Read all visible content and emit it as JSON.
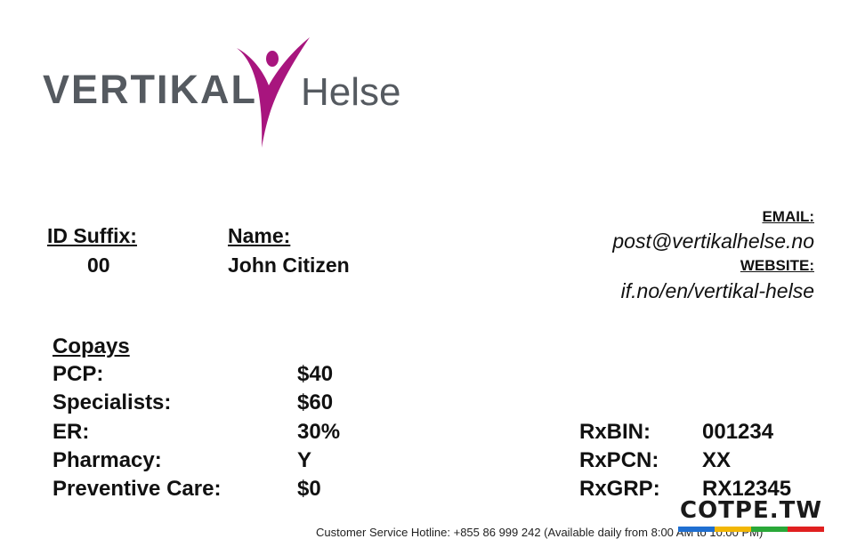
{
  "logo": {
    "word1": "VERTIKAL",
    "word2": "Helse",
    "mark_color": "#a8157e",
    "text_color": "#555a60"
  },
  "member": {
    "id_suffix_label": "ID Suffix:",
    "id_suffix_value": "00",
    "name_label": "Name:",
    "name_value": "John Citizen"
  },
  "contact": {
    "email_label": "EMAIL:",
    "email_value": "post@vertikalhelse.no",
    "website_label": "WEBSITE:",
    "website_value": "if.no/en/vertikal-helse"
  },
  "copays": {
    "title": "Copays",
    "rows": [
      {
        "label": "PCP:",
        "value": "$40"
      },
      {
        "label": "Specialists:",
        "value": "$60"
      },
      {
        "label": "ER:",
        "value": "30%"
      },
      {
        "label": "Pharmacy:",
        "value": "Y"
      },
      {
        "label": "Preventive Care:",
        "value": "$0"
      }
    ]
  },
  "rx": {
    "rows": [
      {
        "label": "RxBIN:",
        "value": "001234"
      },
      {
        "label": "RxPCN:",
        "value": "XX"
      },
      {
        "label": "RxGRP:",
        "value": "RX12345"
      }
    ]
  },
  "footer": {
    "hotline": "Customer Service Hotline:  +855 86 999 242 (Available daily from 8:00 AM to 10:00 PM)"
  },
  "watermark": {
    "text": "COTPE.TW",
    "bar_colors": [
      "#1f6fd1",
      "#f2b705",
      "#2aa838",
      "#e02020"
    ]
  }
}
